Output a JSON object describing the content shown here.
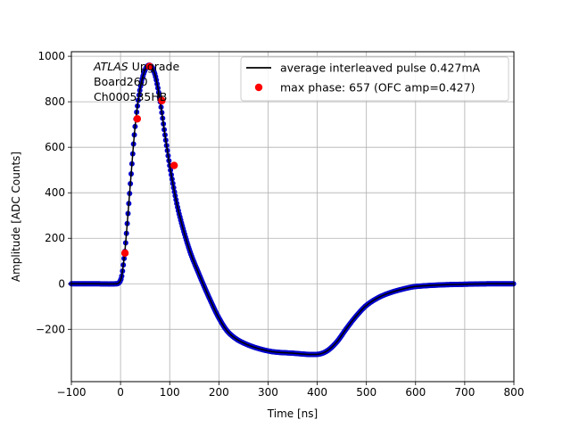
{
  "chart_data": {
    "type": "scatter",
    "title": "",
    "xlabel": "Time [ns]",
    "ylabel": "Amplitude [ADC Counts]",
    "xlim": [
      -100,
      800
    ],
    "ylim": [
      -430,
      1020
    ],
    "grid": true,
    "x_ticks": [
      -100,
      0,
      100,
      200,
      300,
      400,
      500,
      600,
      700,
      800
    ],
    "y_ticks": [
      -200,
      0,
      200,
      400,
      600,
      800,
      1000
    ],
    "x_tick_labels": [
      "−100",
      "0",
      "100",
      "200",
      "300",
      "400",
      "500",
      "600",
      "700",
      "800"
    ],
    "y_tick_labels": [
      "−200",
      "0",
      "200",
      "400",
      "600",
      "800",
      "1000"
    ],
    "annotation": {
      "lines": [
        "ATLAS Upgrade",
        " Board260",
        " Ch000535HB"
      ]
    },
    "legend": {
      "position": "top-right",
      "entries": [
        {
          "label": "average interleaved pulse 0.427mA",
          "marker": "line",
          "color": "#000000"
        },
        {
          "label": "max phase: 657 (OFC amp=0.427)",
          "marker": "circle",
          "color": "#ff0000"
        }
      ]
    },
    "series": [
      {
        "name": "average interleaved pulse 0.427mA",
        "style": "line-with-dense-points",
        "line_color": "#000000",
        "point_color": "#0000cc",
        "x": [
          -100,
          -50,
          -10,
          -3,
          2,
          6,
          10,
          20,
          30,
          40,
          50,
          60,
          70,
          80,
          90,
          100,
          110,
          120,
          140,
          160,
          180,
          200,
          220,
          250,
          300,
          350,
          400,
          420,
          440,
          460,
          480,
          500,
          525,
          550,
          580,
          600,
          650,
          700,
          750,
          800
        ],
        "y": [
          0,
          0,
          0,
          5,
          30,
          90,
          170,
          440,
          700,
          860,
          940,
          960,
          920,
          810,
          660,
          520,
          400,
          300,
          150,
          40,
          -60,
          -150,
          -215,
          -260,
          -295,
          -305,
          -310,
          -295,
          -255,
          -195,
          -140,
          -95,
          -60,
          -38,
          -20,
          -12,
          -5,
          -2,
          0,
          0
        ]
      },
      {
        "name": "max phase: 657 (OFC amp=0.427)",
        "style": "points",
        "color": "#ff0000",
        "x": [
          9,
          34,
          59,
          84,
          109
        ],
        "y": [
          135,
          725,
          955,
          805,
          520
        ]
      }
    ]
  }
}
